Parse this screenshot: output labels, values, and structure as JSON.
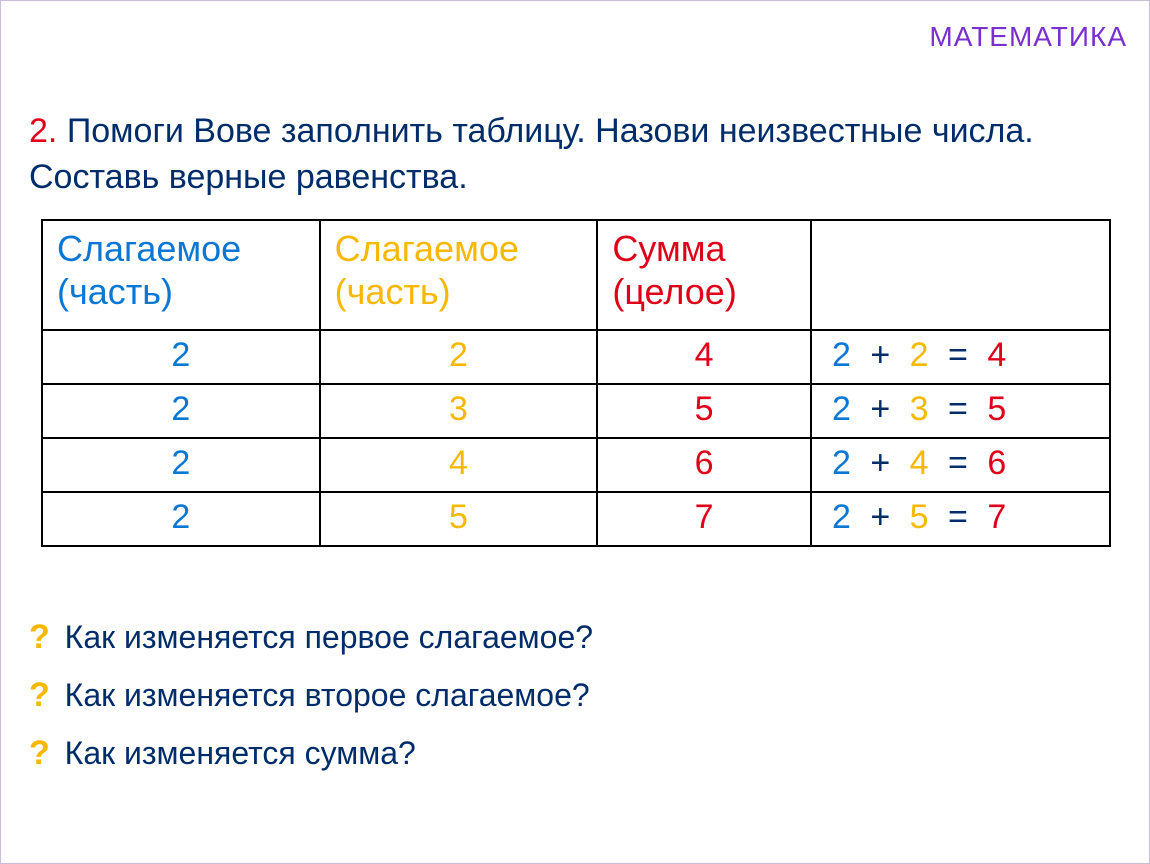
{
  "colors": {
    "purple": "#7a2fcf",
    "dark": "#002d6a",
    "blue": "#0a77d5",
    "yellow": "#f6b800",
    "red": "#e1001a",
    "border": "#000000"
  },
  "headline": "МАТЕМАТИКА",
  "task": {
    "number": "2.",
    "text": "Помоги Вове заполнить таблицу. Назови неизвестные числа. Составь верные равенства."
  },
  "table": {
    "type": "table",
    "columns": [
      {
        "label": "Слагаемое (часть)",
        "color": "blue"
      },
      {
        "label": "Слагаемое (часть)",
        "color": "yellow"
      },
      {
        "label": "Сумма (целое)",
        "color": "red"
      },
      {
        "label": "",
        "color": "dark"
      }
    ],
    "rows": [
      {
        "a": "2",
        "b": "2",
        "sum": "4",
        "eq_a": "2",
        "eq_b": "2",
        "eq_r": "4"
      },
      {
        "a": "2",
        "b": "3",
        "sum": "5",
        "eq_a": "2",
        "eq_b": "3",
        "eq_r": "5"
      },
      {
        "a": "2",
        "b": "4",
        "sum": "6",
        "eq_a": "2",
        "eq_b": "4",
        "eq_r": "6"
      },
      {
        "a": "2",
        "b": "5",
        "sum": "7",
        "eq_a": "2",
        "eq_b": "5",
        "eq_r": "7"
      }
    ],
    "plus": "+",
    "equals": "="
  },
  "questions": {
    "mark": "?",
    "items": [
      "Как изменяется первое слагаемое?",
      "Как изменяется второе слагаемое?",
      "Как изменяется сумма?"
    ]
  }
}
